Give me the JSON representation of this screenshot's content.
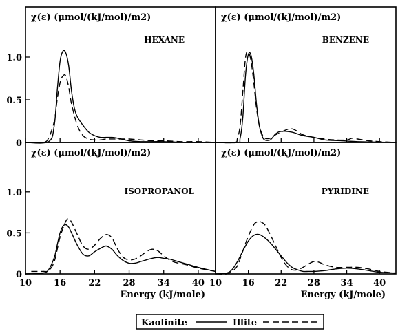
{
  "chart_data": {
    "type": "line",
    "legend": {
      "position": "bottom-center",
      "entries": [
        {
          "name": "Kaolinite",
          "style": "solid"
        },
        {
          "name": "Illite",
          "style": "dashed"
        }
      ]
    },
    "panels": [
      {
        "title": "HEXANE",
        "ylabel": "χ(ε) (μmol/(kJ/mol)/m2)",
        "xlim": [
          10,
          43
        ],
        "ylim": [
          0,
          1.25
        ],
        "yticks": [
          "0",
          "0.5",
          "1.0"
        ],
        "ytick_values": [
          0,
          0.5,
          1.0
        ],
        "series": [
          {
            "name": "Kaolinite",
            "x": [
              10,
              14,
              15,
              15.5,
              16,
              16.5,
              17,
              17.5,
              18,
              18.5,
              19,
              20,
              21,
              22,
              23,
              24,
              25,
              26,
              28,
              30,
              34,
              38,
              43
            ],
            "y": [
              0,
              0.01,
              0.2,
              0.6,
              0.95,
              1.07,
              1.05,
              0.9,
              0.6,
              0.4,
              0.3,
              0.2,
              0.12,
              0.08,
              0.06,
              0.06,
              0.06,
              0.05,
              0.02,
              0.01,
              0.01,
              0,
              0
            ]
          },
          {
            "name": "Illite",
            "x": [
              10,
              13,
              14,
              15,
              15.5,
              16,
              16.5,
              17,
              17.5,
              18,
              19,
              20,
              21,
              22,
              23,
              24,
              26,
              28,
              30,
              32,
              34,
              37,
              40,
              43
            ],
            "y": [
              0,
              0,
              0.05,
              0.25,
              0.5,
              0.7,
              0.78,
              0.78,
              0.65,
              0.45,
              0.2,
              0.08,
              0.04,
              0.03,
              0.03,
              0.04,
              0.04,
              0.04,
              0.03,
              0.02,
              0.02,
              0.01,
              0.01,
              0
            ]
          }
        ]
      },
      {
        "title": "BENZENE",
        "ylabel": "χ(ε) (μmol/(kJ/mol)/m2)",
        "xlim": [
          10,
          43
        ],
        "ylim": [
          0,
          1.25
        ],
        "series": [
          {
            "name": "Kaolinite",
            "x": [
              10,
              14,
              14.5,
              15,
              15.5,
              16,
              16.5,
              17,
              17.5,
              18,
              18.5,
              19,
              20,
              21,
              22,
              24,
              26,
              28,
              30,
              33,
              36,
              43
            ],
            "y": [
              0,
              0,
              0.05,
              0.3,
              0.8,
              1.03,
              1.02,
              0.8,
              0.45,
              0.2,
              0.08,
              0.03,
              0.03,
              0.1,
              0.13,
              0.12,
              0.08,
              0.06,
              0.03,
              0.02,
              0.01,
              0
            ]
          },
          {
            "name": "Illite",
            "x": [
              10,
              13.5,
              14,
              14.5,
              15,
              15.5,
              16,
              16.5,
              17,
              17.5,
              18,
              18.5,
              19,
              20,
              21,
              22,
              23,
              24,
              25,
              26,
              28,
              30,
              32,
              34,
              35,
              36,
              38,
              40,
              43
            ],
            "y": [
              0,
              0,
              0.05,
              0.2,
              0.6,
              1.0,
              1.06,
              0.95,
              0.7,
              0.4,
              0.2,
              0.1,
              0.05,
              0.05,
              0.09,
              0.12,
              0.15,
              0.16,
              0.13,
              0.09,
              0.06,
              0.04,
              0.03,
              0.03,
              0.05,
              0.04,
              0.02,
              0.01,
              0
            ]
          }
        ]
      },
      {
        "title": "ISOPROPANOL",
        "ylabel": "χ(ε) (μmol/(kJ/mol)/m2)",
        "xlim": [
          10,
          43
        ],
        "ylim": [
          0,
          1.25
        ],
        "yticks": [
          "0",
          "0.5",
          "1.0"
        ],
        "ytick_values": [
          0,
          0.5,
          1.0
        ],
        "xticks": [
          "10",
          "16",
          "22",
          "28",
          "34",
          "40"
        ],
        "xtick_values": [
          10,
          16,
          22,
          28,
          34,
          40
        ],
        "xlabel": "Energy (kJ/mole)",
        "series": [
          {
            "name": "Kaolinite",
            "x": [
              10,
              13,
              14,
              15,
              15.5,
              16,
              16.5,
              17,
              17.5,
              18,
              19,
              20,
              21,
              22,
              23,
              24,
              25,
              26,
              27,
              28,
              29,
              30,
              31,
              32,
              33,
              34,
              35,
              36,
              38,
              40,
              43
            ],
            "y": [
              0,
              0.01,
              0.05,
              0.2,
              0.35,
              0.5,
              0.58,
              0.6,
              0.57,
              0.5,
              0.35,
              0.24,
              0.22,
              0.27,
              0.31,
              0.34,
              0.3,
              0.22,
              0.16,
              0.13,
              0.13,
              0.15,
              0.17,
              0.19,
              0.2,
              0.19,
              0.18,
              0.16,
              0.12,
              0.08,
              0.03
            ]
          },
          {
            "name": "Illite",
            "x": [
              11,
              13,
              14,
              15,
              16,
              17,
              17.5,
              18,
              19,
              20,
              21,
              22,
              23,
              24,
              25,
              26,
              27,
              28,
              29,
              30,
              31,
              32,
              33,
              34,
              35,
              36,
              38,
              40,
              43
            ],
            "y": [
              0.03,
              0.03,
              0.04,
              0.15,
              0.45,
              0.64,
              0.67,
              0.63,
              0.48,
              0.34,
              0.3,
              0.35,
              0.43,
              0.48,
              0.44,
              0.3,
              0.2,
              0.17,
              0.18,
              0.22,
              0.27,
              0.3,
              0.28,
              0.22,
              0.17,
              0.14,
              0.11,
              0.07,
              0.03
            ]
          }
        ]
      },
      {
        "title": "PYRIDINE",
        "ylabel": "χ(ε) (μmol/(kJ/mol)/m2)",
        "xlim": [
          10,
          43
        ],
        "ylim": [
          0,
          1.25
        ],
        "xticks": [
          "10",
          "16",
          "22",
          "28",
          "34",
          "40"
        ],
        "xtick_values": [
          10,
          16,
          22,
          28,
          34,
          40
        ],
        "xlabel": "Energy (kJ/mole)",
        "series": [
          {
            "name": "Kaolinite",
            "x": [
              10,
              12,
              13,
              14,
              15,
              16,
              17,
              18,
              19,
              20,
              21,
              22,
              23,
              24,
              25,
              26,
              27,
              28,
              30,
              32,
              34,
              36,
              38,
              40,
              43
            ],
            "y": [
              0,
              0.01,
              0.05,
              0.15,
              0.28,
              0.4,
              0.47,
              0.48,
              0.44,
              0.38,
              0.3,
              0.22,
              0.14,
              0.08,
              0.05,
              0.03,
              0.03,
              0.03,
              0.04,
              0.06,
              0.07,
              0.06,
              0.04,
              0.02,
              0.01
            ]
          },
          {
            "name": "Illite",
            "x": [
              10,
              12,
              13,
              14,
              15,
              16,
              17,
              17.5,
              18,
              19,
              20,
              21,
              22,
              23,
              24,
              25,
              26,
              27,
              28,
              29,
              30,
              32,
              34,
              36,
              38,
              40,
              43
            ],
            "y": [
              0,
              0,
              0.03,
              0.1,
              0.28,
              0.46,
              0.6,
              0.63,
              0.64,
              0.6,
              0.48,
              0.34,
              0.2,
              0.1,
              0.05,
              0.05,
              0.08,
              0.12,
              0.15,
              0.14,
              0.11,
              0.08,
              0.08,
              0.08,
              0.06,
              0.03,
              0.01
            ]
          }
        ]
      }
    ]
  }
}
